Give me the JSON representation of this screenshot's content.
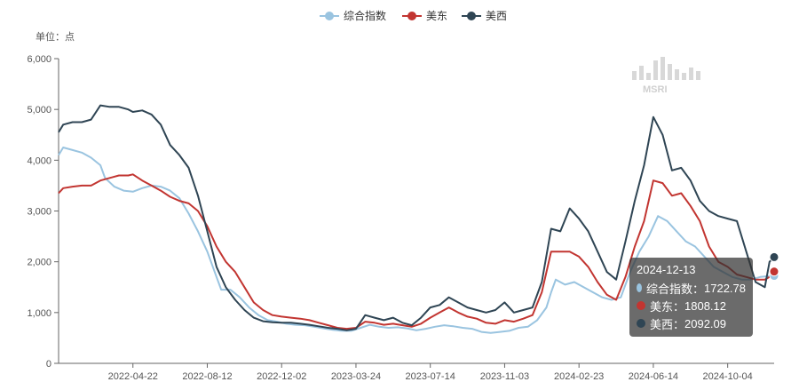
{
  "chart_data": {
    "type": "line",
    "unit_label": "单位：点",
    "legend_position": "top-center",
    "ylim": [
      0,
      6000
    ],
    "yticks": [
      "0",
      "1,000",
      "2,000",
      "3,000",
      "4,000",
      "5,000",
      "6,000"
    ],
    "xticks": [
      "2022-04-22",
      "2022-08-12",
      "2022-12-02",
      "2023-03-24",
      "2023-07-14",
      "2023-11-03",
      "2024-02-23",
      "2024-06-14",
      "2024-10-04"
    ],
    "grid": false,
    "x_start": "2021-12-31",
    "x_end": "2024-12-13",
    "series": [
      {
        "name": "综合指数",
        "color": "#9ac4e0",
        "values": [
          [
            "2021-12-31",
            4100
          ],
          [
            "2022-01-07",
            4250
          ],
          [
            "2022-01-21",
            4200
          ],
          [
            "2022-02-04",
            4150
          ],
          [
            "2022-02-18",
            4050
          ],
          [
            "2022-03-04",
            3900
          ],
          [
            "2022-03-11",
            3650
          ],
          [
            "2022-03-25",
            3480
          ],
          [
            "2022-04-08",
            3400
          ],
          [
            "2022-04-22",
            3380
          ],
          [
            "2022-05-06",
            3450
          ],
          [
            "2022-05-20",
            3500
          ],
          [
            "2022-06-03",
            3480
          ],
          [
            "2022-06-17",
            3400
          ],
          [
            "2022-07-01",
            3250
          ],
          [
            "2022-07-15",
            2950
          ],
          [
            "2022-07-29",
            2600
          ],
          [
            "2022-08-12",
            2200
          ],
          [
            "2022-08-26",
            1700
          ],
          [
            "2022-09-02",
            1450
          ],
          [
            "2022-09-16",
            1450
          ],
          [
            "2022-09-30",
            1300
          ],
          [
            "2022-10-14",
            1100
          ],
          [
            "2022-10-28",
            950
          ],
          [
            "2022-11-11",
            850
          ],
          [
            "2022-11-25",
            820
          ],
          [
            "2022-12-09",
            780
          ],
          [
            "2022-12-23",
            760
          ],
          [
            "2023-01-06",
            750
          ],
          [
            "2023-01-20",
            720
          ],
          [
            "2023-02-03",
            690
          ],
          [
            "2023-02-17",
            660
          ],
          [
            "2023-03-03",
            640
          ],
          [
            "2023-03-17",
            640
          ],
          [
            "2023-03-31",
            700
          ],
          [
            "2023-04-14",
            760
          ],
          [
            "2023-04-28",
            720
          ],
          [
            "2023-05-12",
            700
          ],
          [
            "2023-05-26",
            710
          ],
          [
            "2023-06-09",
            690
          ],
          [
            "2023-06-23",
            650
          ],
          [
            "2023-07-07",
            680
          ],
          [
            "2023-07-21",
            720
          ],
          [
            "2023-08-04",
            750
          ],
          [
            "2023-08-18",
            730
          ],
          [
            "2023-09-01",
            700
          ],
          [
            "2023-09-15",
            680
          ],
          [
            "2023-09-29",
            620
          ],
          [
            "2023-10-13",
            600
          ],
          [
            "2023-10-27",
            620
          ],
          [
            "2023-11-10",
            640
          ],
          [
            "2023-11-24",
            700
          ],
          [
            "2023-12-08",
            720
          ],
          [
            "2023-12-22",
            850
          ],
          [
            "2024-01-05",
            1100
          ],
          [
            "2024-01-12",
            1400
          ],
          [
            "2024-01-19",
            1650
          ],
          [
            "2024-02-02",
            1550
          ],
          [
            "2024-02-16",
            1600
          ],
          [
            "2024-03-01",
            1500
          ],
          [
            "2024-03-15",
            1400
          ],
          [
            "2024-03-29",
            1300
          ],
          [
            "2024-04-12",
            1250
          ],
          [
            "2024-04-26",
            1300
          ],
          [
            "2024-05-10",
            1800
          ],
          [
            "2024-05-24",
            2200
          ],
          [
            "2024-06-07",
            2500
          ],
          [
            "2024-06-21",
            2900
          ],
          [
            "2024-07-05",
            2800
          ],
          [
            "2024-07-19",
            2600
          ],
          [
            "2024-08-02",
            2400
          ],
          [
            "2024-08-16",
            2300
          ],
          [
            "2024-08-30",
            2100
          ],
          [
            "2024-09-13",
            1900
          ],
          [
            "2024-09-27",
            1800
          ],
          [
            "2024-10-11",
            1700
          ],
          [
            "2024-10-25",
            1650
          ],
          [
            "2024-11-08",
            1650
          ],
          [
            "2024-11-22",
            1700
          ],
          [
            "2024-12-06",
            1720
          ],
          [
            "2024-12-13",
            1722.78
          ]
        ]
      },
      {
        "name": "美东",
        "color": "#c23531",
        "values": [
          [
            "2021-12-31",
            3350
          ],
          [
            "2022-01-07",
            3450
          ],
          [
            "2022-01-21",
            3480
          ],
          [
            "2022-02-04",
            3500
          ],
          [
            "2022-02-18",
            3500
          ],
          [
            "2022-03-04",
            3600
          ],
          [
            "2022-03-18",
            3650
          ],
          [
            "2022-04-01",
            3700
          ],
          [
            "2022-04-15",
            3700
          ],
          [
            "2022-04-22",
            3720
          ],
          [
            "2022-05-06",
            3600
          ],
          [
            "2022-05-20",
            3500
          ],
          [
            "2022-06-03",
            3400
          ],
          [
            "2022-06-17",
            3280
          ],
          [
            "2022-07-01",
            3200
          ],
          [
            "2022-07-15",
            3150
          ],
          [
            "2022-07-29",
            3000
          ],
          [
            "2022-08-12",
            2700
          ],
          [
            "2022-08-26",
            2300
          ],
          [
            "2022-09-09",
            2000
          ],
          [
            "2022-09-23",
            1800
          ],
          [
            "2022-10-07",
            1500
          ],
          [
            "2022-10-21",
            1200
          ],
          [
            "2022-11-04",
            1050
          ],
          [
            "2022-11-18",
            950
          ],
          [
            "2022-12-02",
            920
          ],
          [
            "2022-12-16",
            900
          ],
          [
            "2022-12-30",
            880
          ],
          [
            "2023-01-13",
            850
          ],
          [
            "2023-01-27",
            800
          ],
          [
            "2023-02-10",
            750
          ],
          [
            "2023-02-24",
            700
          ],
          [
            "2023-03-10",
            680
          ],
          [
            "2023-03-24",
            700
          ],
          [
            "2023-04-07",
            820
          ],
          [
            "2023-04-21",
            800
          ],
          [
            "2023-05-05",
            760
          ],
          [
            "2023-05-19",
            780
          ],
          [
            "2023-06-02",
            750
          ],
          [
            "2023-06-16",
            720
          ],
          [
            "2023-06-30",
            780
          ],
          [
            "2023-07-14",
            900
          ],
          [
            "2023-07-28",
            1000
          ],
          [
            "2023-08-11",
            1100
          ],
          [
            "2023-08-25",
            1000
          ],
          [
            "2023-09-08",
            920
          ],
          [
            "2023-09-22",
            880
          ],
          [
            "2023-10-06",
            800
          ],
          [
            "2023-10-20",
            780
          ],
          [
            "2023-11-03",
            850
          ],
          [
            "2023-11-17",
            820
          ],
          [
            "2023-12-01",
            880
          ],
          [
            "2023-12-15",
            950
          ],
          [
            "2023-12-29",
            1400
          ],
          [
            "2024-01-12",
            2200
          ],
          [
            "2024-01-26",
            2200
          ],
          [
            "2024-02-09",
            2200
          ],
          [
            "2024-02-23",
            2100
          ],
          [
            "2024-03-08",
            1900
          ],
          [
            "2024-03-22",
            1600
          ],
          [
            "2024-04-05",
            1350
          ],
          [
            "2024-04-19",
            1250
          ],
          [
            "2024-05-03",
            1700
          ],
          [
            "2024-05-17",
            2300
          ],
          [
            "2024-05-31",
            2800
          ],
          [
            "2024-06-14",
            3600
          ],
          [
            "2024-06-28",
            3550
          ],
          [
            "2024-07-12",
            3300
          ],
          [
            "2024-07-26",
            3350
          ],
          [
            "2024-08-09",
            3100
          ],
          [
            "2024-08-23",
            2800
          ],
          [
            "2024-09-06",
            2300
          ],
          [
            "2024-09-20",
            2000
          ],
          [
            "2024-10-04",
            1900
          ],
          [
            "2024-10-18",
            1750
          ],
          [
            "2024-11-01",
            1700
          ],
          [
            "2024-11-15",
            1650
          ],
          [
            "2024-11-29",
            1650
          ],
          [
            "2024-12-06",
            1700
          ],
          [
            "2024-12-13",
            1808.12
          ]
        ]
      },
      {
        "name": "美西",
        "color": "#2f4554",
        "values": [
          [
            "2021-12-31",
            4550
          ],
          [
            "2022-01-07",
            4700
          ],
          [
            "2022-01-21",
            4750
          ],
          [
            "2022-02-04",
            4750
          ],
          [
            "2022-02-18",
            4800
          ],
          [
            "2022-03-04",
            5080
          ],
          [
            "2022-03-18",
            5050
          ],
          [
            "2022-04-01",
            5050
          ],
          [
            "2022-04-15",
            5000
          ],
          [
            "2022-04-22",
            4950
          ],
          [
            "2022-05-06",
            4980
          ],
          [
            "2022-05-20",
            4900
          ],
          [
            "2022-06-03",
            4700
          ],
          [
            "2022-06-17",
            4300
          ],
          [
            "2022-07-01",
            4100
          ],
          [
            "2022-07-15",
            3850
          ],
          [
            "2022-07-29",
            3300
          ],
          [
            "2022-08-12",
            2600
          ],
          [
            "2022-08-26",
            1900
          ],
          [
            "2022-09-09",
            1500
          ],
          [
            "2022-09-23",
            1250
          ],
          [
            "2022-10-07",
            1050
          ],
          [
            "2022-10-21",
            900
          ],
          [
            "2022-11-04",
            830
          ],
          [
            "2022-11-18",
            810
          ],
          [
            "2022-12-02",
            800
          ],
          [
            "2022-12-16",
            800
          ],
          [
            "2022-12-30",
            780
          ],
          [
            "2023-01-13",
            760
          ],
          [
            "2023-01-27",
            730
          ],
          [
            "2023-02-10",
            700
          ],
          [
            "2023-02-24",
            680
          ],
          [
            "2023-03-10",
            650
          ],
          [
            "2023-03-24",
            680
          ],
          [
            "2023-04-07",
            950
          ],
          [
            "2023-04-21",
            900
          ],
          [
            "2023-05-05",
            850
          ],
          [
            "2023-05-19",
            900
          ],
          [
            "2023-06-02",
            800
          ],
          [
            "2023-06-16",
            750
          ],
          [
            "2023-06-30",
            900
          ],
          [
            "2023-07-14",
            1100
          ],
          [
            "2023-07-28",
            1150
          ],
          [
            "2023-08-11",
            1300
          ],
          [
            "2023-08-25",
            1200
          ],
          [
            "2023-09-08",
            1100
          ],
          [
            "2023-09-22",
            1050
          ],
          [
            "2023-10-06",
            1000
          ],
          [
            "2023-10-20",
            1050
          ],
          [
            "2023-11-03",
            1200
          ],
          [
            "2023-11-17",
            1000
          ],
          [
            "2023-12-01",
            1050
          ],
          [
            "2023-12-15",
            1100
          ],
          [
            "2023-12-29",
            1600
          ],
          [
            "2024-01-12",
            2650
          ],
          [
            "2024-01-26",
            2600
          ],
          [
            "2024-02-09",
            3050
          ],
          [
            "2024-02-23",
            2850
          ],
          [
            "2024-03-08",
            2600
          ],
          [
            "2024-03-22",
            2200
          ],
          [
            "2024-04-05",
            1800
          ],
          [
            "2024-04-19",
            1650
          ],
          [
            "2024-05-03",
            2400
          ],
          [
            "2024-05-17",
            3200
          ],
          [
            "2024-05-31",
            3900
          ],
          [
            "2024-06-14",
            4850
          ],
          [
            "2024-06-28",
            4500
          ],
          [
            "2024-07-12",
            3800
          ],
          [
            "2024-07-26",
            3850
          ],
          [
            "2024-08-09",
            3600
          ],
          [
            "2024-08-23",
            3200
          ],
          [
            "2024-09-06",
            3000
          ],
          [
            "2024-09-20",
            2900
          ],
          [
            "2024-10-04",
            2850
          ],
          [
            "2024-10-18",
            2800
          ],
          [
            "2024-11-01",
            2200
          ],
          [
            "2024-11-15",
            1600
          ],
          [
            "2024-11-29",
            1500
          ],
          [
            "2024-12-06",
            2000
          ],
          [
            "2024-12-13",
            2092.09
          ]
        ]
      }
    ]
  },
  "tooltip": {
    "date": "2024-12-13",
    "rows": [
      {
        "label": "综合指数：",
        "value": "1722.78",
        "color": "#9ac4e0"
      },
      {
        "label": "美东：",
        "value": "1808.12",
        "color": "#c23531"
      },
      {
        "label": "美西：",
        "value": "2092.09",
        "color": "#2f4554"
      }
    ]
  },
  "watermark": {
    "text": "MSRI"
  }
}
